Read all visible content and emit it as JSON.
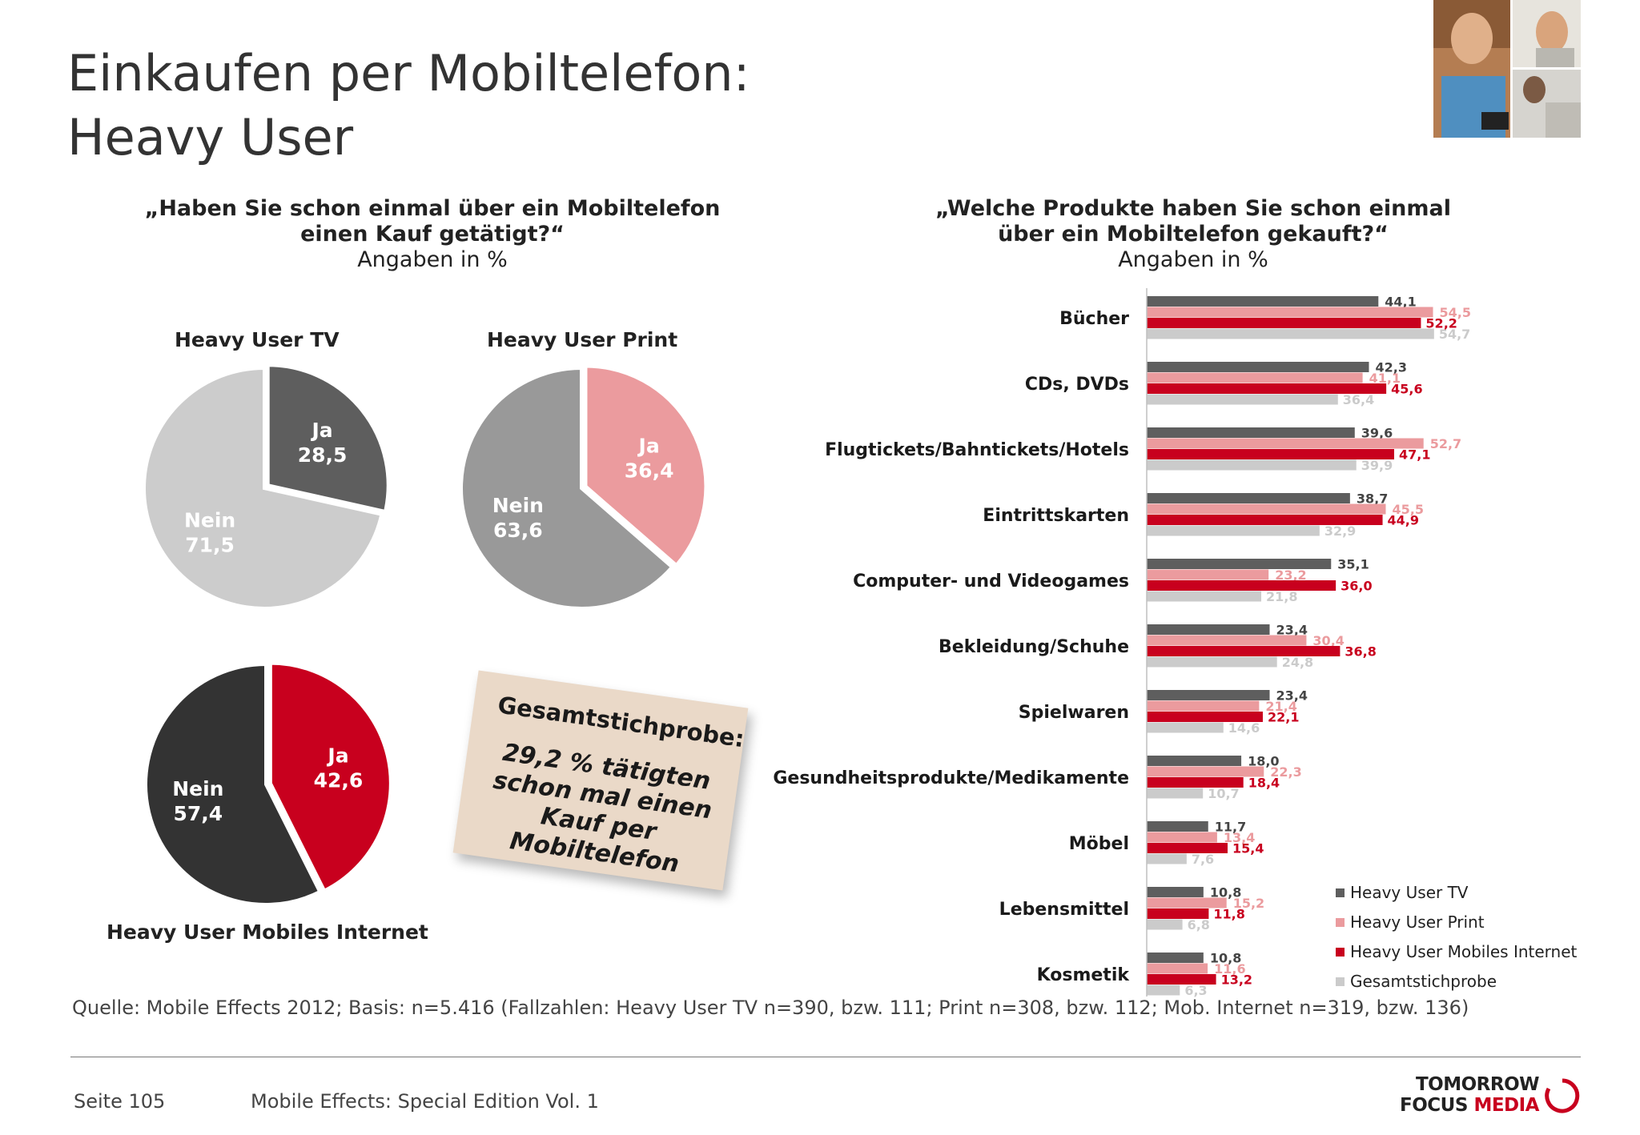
{
  "title": {
    "line1": "Einkaufen per Mobiltelefon:",
    "line2": "Heavy User"
  },
  "left_question": {
    "line1": "„Haben Sie schon einmal über ein Mobiltelefon",
    "line2": "einen Kauf getätigt?“",
    "note": "Angaben in %"
  },
  "right_question": {
    "line1": "„Welche Produkte haben Sie schon einmal",
    "line2": "über ein Mobiltelefon gekauft?“",
    "note": "Angaben in %"
  },
  "sticky_note": {
    "title": "Gesamtstichprobe:",
    "body": [
      "29,2 % tätigten",
      "schon mal einen",
      "Kauf per",
      "Mobiltelefon"
    ]
  },
  "source": "Quelle: Mobile Effects 2012; Basis: n=5.416 (Fallzahlen: Heavy User TV n=390, bzw. 111; Print n=308, bzw. 112; Mob. Internet n=319, bzw. 136)",
  "footer": {
    "page": "Seite 105",
    "publication": "Mobile Effects: Special Edition Vol. 1",
    "logo_line1": "TOMORROW",
    "logo_line2a": "FOCUS ",
    "logo_line2b": "MEDIA"
  },
  "colors": {
    "tv": "#5e5e5e",
    "print": "#eb9b9e",
    "mobile": "#c8001e",
    "total": "#cbcbcb",
    "pie_tv_nein": "#cccccc",
    "pie_print_nein": "#999999",
    "pie_mobile_nein": "#333333"
  },
  "chart_data": [
    {
      "type": "pie",
      "title": "Heavy User TV",
      "slices": [
        {
          "label": "Ja",
          "value": 28.5,
          "display": "28,5",
          "color": "#5e5e5e",
          "exploded": true
        },
        {
          "label": "Nein",
          "value": 71.5,
          "display": "71,5",
          "color": "#cccccc"
        }
      ]
    },
    {
      "type": "pie",
      "title": "Heavy User Print",
      "slices": [
        {
          "label": "Ja",
          "value": 36.4,
          "display": "36,4",
          "color": "#eb9b9e",
          "exploded": true
        },
        {
          "label": "Nein",
          "value": 63.6,
          "display": "63,6",
          "color": "#999999"
        }
      ]
    },
    {
      "type": "pie",
      "title": "Heavy User Mobiles Internet",
      "slices": [
        {
          "label": "Ja",
          "value": 42.6,
          "display": "42,6",
          "color": "#c8001e",
          "exploded": true
        },
        {
          "label": "Nein",
          "value": 57.4,
          "display": "57,4",
          "color": "#333333"
        }
      ]
    },
    {
      "type": "bar",
      "orientation": "horizontal",
      "categories": [
        "Bücher",
        "CDs, DVDs",
        "Flugtickets/Bahntickets/Hotels",
        "Eintrittskarten",
        "Computer- und Videogames",
        "Bekleidung/Schuhe",
        "Spielwaren",
        "Gesundheitsprodukte/Medikamente",
        "Möbel",
        "Lebensmittel",
        "Kosmetik"
      ],
      "series": [
        {
          "name": "Heavy User TV",
          "color": "#5e5e5e",
          "values": [
            44.1,
            42.3,
            39.6,
            38.7,
            35.1,
            23.4,
            23.4,
            18.0,
            11.7,
            10.8,
            10.8
          ],
          "labels": [
            "44,1",
            "42,3",
            "39,6",
            "38,7",
            "35,1",
            "23,4",
            "23,4",
            "18,0",
            "11,7",
            "10,8",
            "10,8"
          ]
        },
        {
          "name": "Heavy User Print",
          "color": "#eb9b9e",
          "values": [
            54.5,
            41.1,
            52.7,
            45.5,
            23.2,
            30.4,
            21.4,
            22.3,
            13.4,
            15.2,
            11.6
          ],
          "labels": [
            "54,5",
            "41,1",
            "52,7",
            "45,5",
            "23,2",
            "30,4",
            "21,4",
            "22,3",
            "13,4",
            "15,2",
            "11,6"
          ]
        },
        {
          "name": "Heavy User Mobiles Internet",
          "color": "#c8001e",
          "values": [
            52.2,
            45.6,
            47.1,
            44.9,
            36.0,
            36.8,
            22.1,
            18.4,
            15.4,
            11.8,
            13.2
          ],
          "labels": [
            "52,2",
            "45,6",
            "47,1",
            "44,9",
            "36,0",
            "36,8",
            "22,1",
            "18,4",
            "15,4",
            "11,8",
            "13,2"
          ]
        },
        {
          "name": "Gesamtstichprobe",
          "color": "#cbcbcb",
          "values": [
            54.7,
            36.4,
            39.9,
            32.9,
            21.8,
            24.8,
            14.6,
            10.7,
            7.6,
            6.8,
            6.3
          ],
          "labels": [
            "54,7",
            "36,4",
            "39,9",
            "32,9",
            "21,8",
            "24,8",
            "14,6",
            "10,7",
            "7,6",
            "6,8",
            "6,3"
          ]
        }
      ],
      "xlim": [
        0,
        60
      ],
      "grid": false,
      "legend": "bottom-right"
    }
  ]
}
